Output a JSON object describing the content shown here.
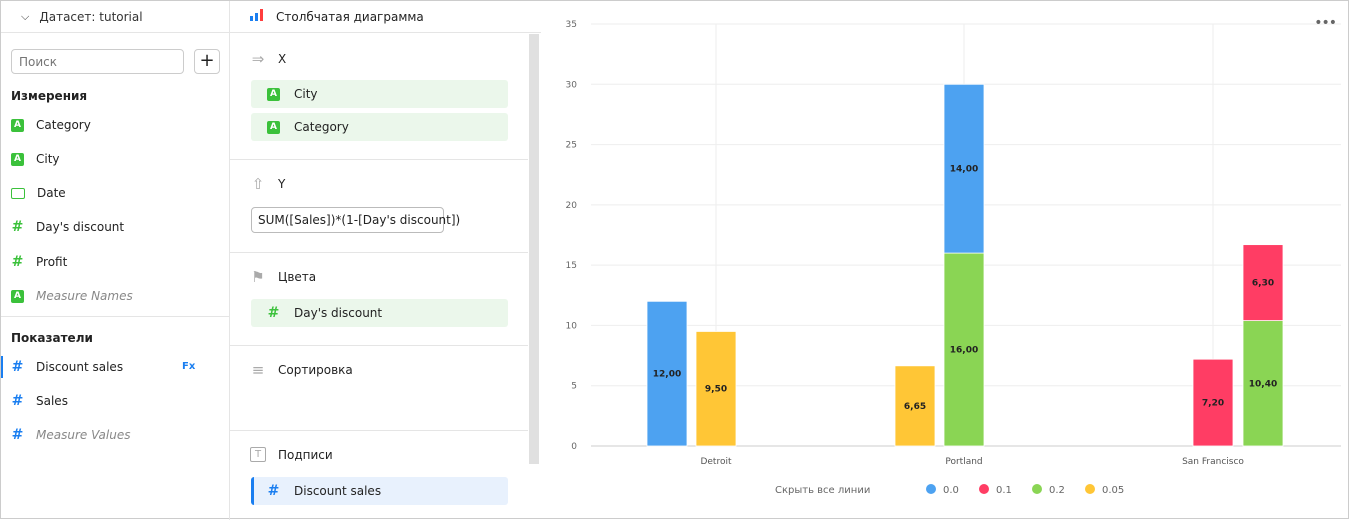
{
  "dataset": {
    "label": "Датасет:",
    "name": "tutorial"
  },
  "search": {
    "placeholder": "Поиск"
  },
  "add_label": "+",
  "dimensions": {
    "title": "Измерения",
    "items": [
      {
        "label": "Category",
        "type": "string"
      },
      {
        "label": "City",
        "type": "string"
      },
      {
        "label": "Date",
        "type": "date"
      },
      {
        "label": "Day's discount",
        "type": "number"
      },
      {
        "label": "Profit",
        "type": "number"
      },
      {
        "label": "Measure Names",
        "type": "string"
      }
    ]
  },
  "measures": {
    "title": "Показатели",
    "items": [
      {
        "label": "Discount sales",
        "badge": "Fx"
      },
      {
        "label": "Sales"
      },
      {
        "label": "Measure Values"
      }
    ]
  },
  "visualization": {
    "title": "Столбчатая диаграмма"
  },
  "sections": {
    "x": {
      "title": "X",
      "items": [
        "City",
        "Category"
      ]
    },
    "y": {
      "title": "Y",
      "formula": "SUM([Sales])*(1-[Day's discount])"
    },
    "colors": {
      "title": "Цвета",
      "items": [
        "Day's discount"
      ]
    },
    "sort": {
      "title": "Сортировка"
    },
    "labels": {
      "title": "Подписи",
      "items": [
        "Discount sales"
      ]
    }
  },
  "chart_data": {
    "type": "bar",
    "stacked": true,
    "categories": [
      "Detroit",
      "Portland",
      "San Francisco"
    ],
    "ylim": [
      0,
      35
    ],
    "yticks": [
      "0",
      "5",
      "10",
      "15",
      "20",
      "25",
      "30",
      "35"
    ],
    "grid": true,
    "legend_position": "bottom",
    "legend_toggle": "Скрыть все линии",
    "series": [
      {
        "name": "0.0",
        "color": "#4da2f1"
      },
      {
        "name": "0.1",
        "color": "#ff3d64"
      },
      {
        "name": "0.2",
        "color": "#8ad554"
      },
      {
        "name": "0.05",
        "color": "#ffc636"
      }
    ],
    "bars": [
      {
        "category": "Detroit",
        "slot": 0,
        "segments": [
          {
            "series": "0.0",
            "value": 12.0,
            "label": "12,00"
          }
        ]
      },
      {
        "category": "Detroit",
        "slot": 1,
        "segments": [
          {
            "series": "0.05",
            "value": 9.5,
            "label": "9,50"
          }
        ]
      },
      {
        "category": "Portland",
        "slot": 0,
        "segments": [
          {
            "series": "0.05",
            "value": 6.65,
            "label": "6,65"
          }
        ]
      },
      {
        "category": "Portland",
        "slot": 1,
        "segments": [
          {
            "series": "0.2",
            "value": 16.0,
            "label": "16,00"
          },
          {
            "series": "0.0",
            "value": 14.0,
            "label": "14,00"
          }
        ]
      },
      {
        "category": "San Francisco",
        "slot": 1,
        "segments": [
          {
            "series": "0.1",
            "value": 7.2,
            "label": "7,20"
          }
        ]
      },
      {
        "category": "San Francisco",
        "slot": 2,
        "segments": [
          {
            "series": "0.2",
            "value": 10.4,
            "label": "10,40"
          },
          {
            "series": "0.1",
            "value": 6.3,
            "label": "6,30"
          }
        ]
      }
    ]
  }
}
